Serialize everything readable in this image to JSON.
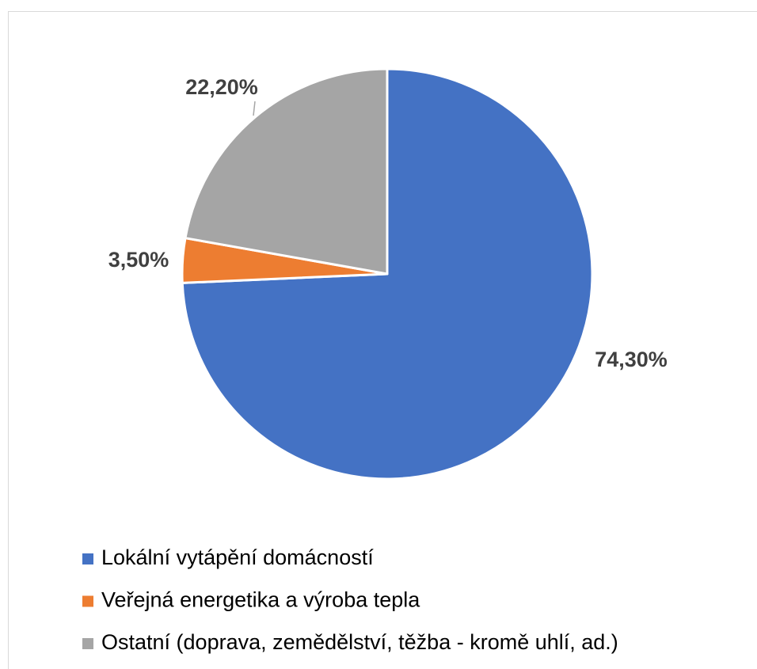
{
  "chart_data": {
    "type": "pie",
    "categories": [
      "Lokální vytápění domácností",
      "Veřejná energetika a výroba tepla",
      "Ostatní (doprava, zemědělství, těžba - kromě uhlí, ad.)"
    ],
    "values": [
      74.3,
      3.5,
      22.2
    ],
    "value_labels": [
      "74,30%",
      "3,50%",
      "22,20%"
    ],
    "colors": [
      "#4472c4",
      "#ed7d31",
      "#a5a5a5"
    ],
    "legend": "bottom"
  }
}
